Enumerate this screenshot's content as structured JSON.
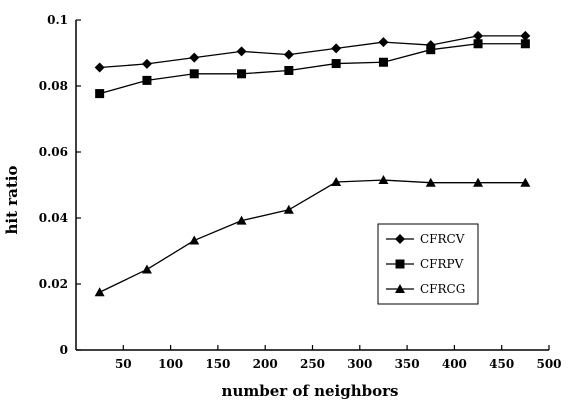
{
  "chart_data": {
    "type": "line",
    "title": "",
    "xlabel": "number of neighbors",
    "ylabel": "hit ratio",
    "x": [
      25,
      75,
      125,
      175,
      225,
      275,
      325,
      375,
      425,
      475
    ],
    "xlim": [
      0,
      500
    ],
    "ylim": [
      0,
      0.1
    ],
    "x_ticks": [
      50,
      100,
      150,
      200,
      250,
      300,
      350,
      400,
      450,
      500
    ],
    "y_ticks": [
      0,
      0.02,
      0.04,
      0.06,
      0.08,
      0.1
    ],
    "x_tick_labels": [
      "50",
      "100",
      "150",
      "200",
      "250",
      "300",
      "350",
      "400",
      "450",
      "500"
    ],
    "y_tick_labels": [
      "0",
      "0.02",
      "0.04",
      "0.06",
      "0.08",
      "0.1"
    ],
    "grid": false,
    "legend_position": "right-center",
    "series": [
      {
        "name": "CFRCV",
        "marker": "diamond",
        "values": [
          0.0856,
          0.0867,
          0.0886,
          0.0905,
          0.0895,
          0.0914,
          0.0933,
          0.0924,
          0.0952,
          0.0952
        ]
      },
      {
        "name": "CFRPV",
        "marker": "square",
        "values": [
          0.0777,
          0.0817,
          0.0837,
          0.0837,
          0.0847,
          0.0868,
          0.0872,
          0.091,
          0.0928,
          0.0928
        ]
      },
      {
        "name": "CFRCG",
        "marker": "triangle",
        "values": [
          0.0175,
          0.0244,
          0.0332,
          0.0392,
          0.0425,
          0.0509,
          0.0515,
          0.0507,
          0.0507,
          0.0507
        ]
      }
    ]
  }
}
